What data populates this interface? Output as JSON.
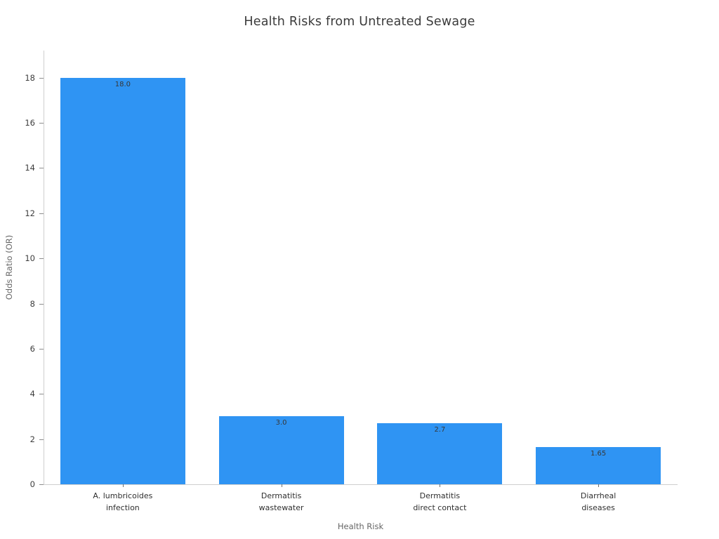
{
  "chart_data": {
    "type": "bar",
    "title": "Health Risks from Untreated Sewage",
    "xlabel": "Health Risk",
    "ylabel": "Odds Ratio (OR)",
    "categories": [
      "A. lumbricoides\ninfection",
      "Dermatitis\nwastewater",
      "Dermatitis\ndirect contact",
      "Diarrheal\ndiseases"
    ],
    "values": [
      18.0,
      3.0,
      2.7,
      1.65
    ],
    "value_labels": [
      "18.0",
      "3.0",
      "2.7",
      "1.65"
    ],
    "yticks": [
      0,
      2,
      4,
      6,
      8,
      10,
      12,
      14,
      16,
      18
    ],
    "ylim": [
      0,
      19.2
    ],
    "grid": false,
    "legend": "none",
    "bar_color": "#2F94F3",
    "value_label_color": "#373737",
    "title_color": "#3b3b3b",
    "axis_label_color": "#666666",
    "tick_label_color": "#3d3d3d",
    "spine_color": "#cfcfcf"
  }
}
